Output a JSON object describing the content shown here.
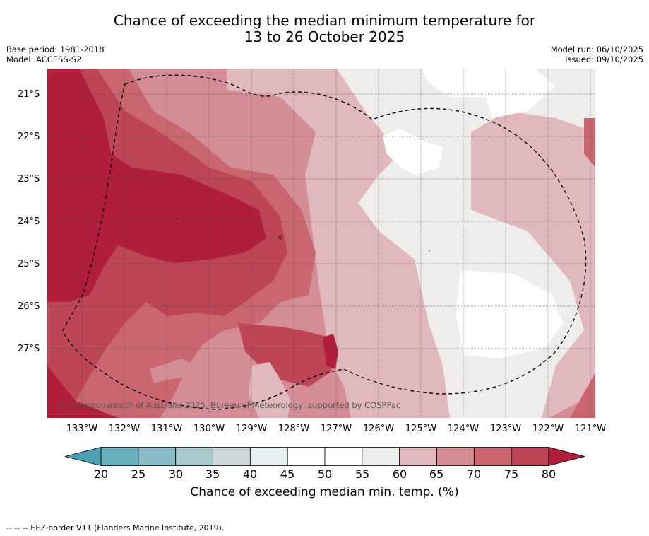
{
  "title": {
    "line1": "Chance of exceeding the median minimum temperature for",
    "line2": "13 to 26 October 2025"
  },
  "meta": {
    "base_period": "Base period: 1981-2018",
    "model": "Model: ACCESS-S2",
    "model_run": "Model run: 06/10/2025",
    "issued": "Issued: 09/10/2025"
  },
  "map": {
    "lat_labels": [
      "21°S",
      "22°S",
      "23°S",
      "24°S",
      "25°S",
      "26°S",
      "27°S"
    ],
    "lon_labels": [
      "133°W",
      "132°W",
      "131°W",
      "130°W",
      "129°W",
      "128°W",
      "127°W",
      "126°W",
      "125°W",
      "124°W",
      "123°W",
      "122°W",
      "121°W"
    ],
    "copyright": "© Commonwealth of Australia 2025, Bureau of Meteorology, supported by COSPPac"
  },
  "colorbar": {
    "ticks": [
      "20",
      "25",
      "30",
      "35",
      "40",
      "45",
      "50",
      "55",
      "60",
      "65",
      "70",
      "75",
      "80"
    ],
    "colors": [
      "#6aafbf",
      "#8bbbc7",
      "#a9c9cf",
      "#cfd9db",
      "#e8eff2",
      "#ffffff",
      "#ffffff",
      "#efedeb",
      "#e0b8bd",
      "#d48d95",
      "#c96670",
      "#bd4555"
    ],
    "low_extend_color": "#4a9fb1",
    "high_extend_color": "#b01e3b",
    "label": "Chance of exceeding median min. temp. (%)"
  },
  "footer": {
    "legend_text": "--  --  -- EEZ border V11 (Flanders Marine Institute, 2019)."
  }
}
